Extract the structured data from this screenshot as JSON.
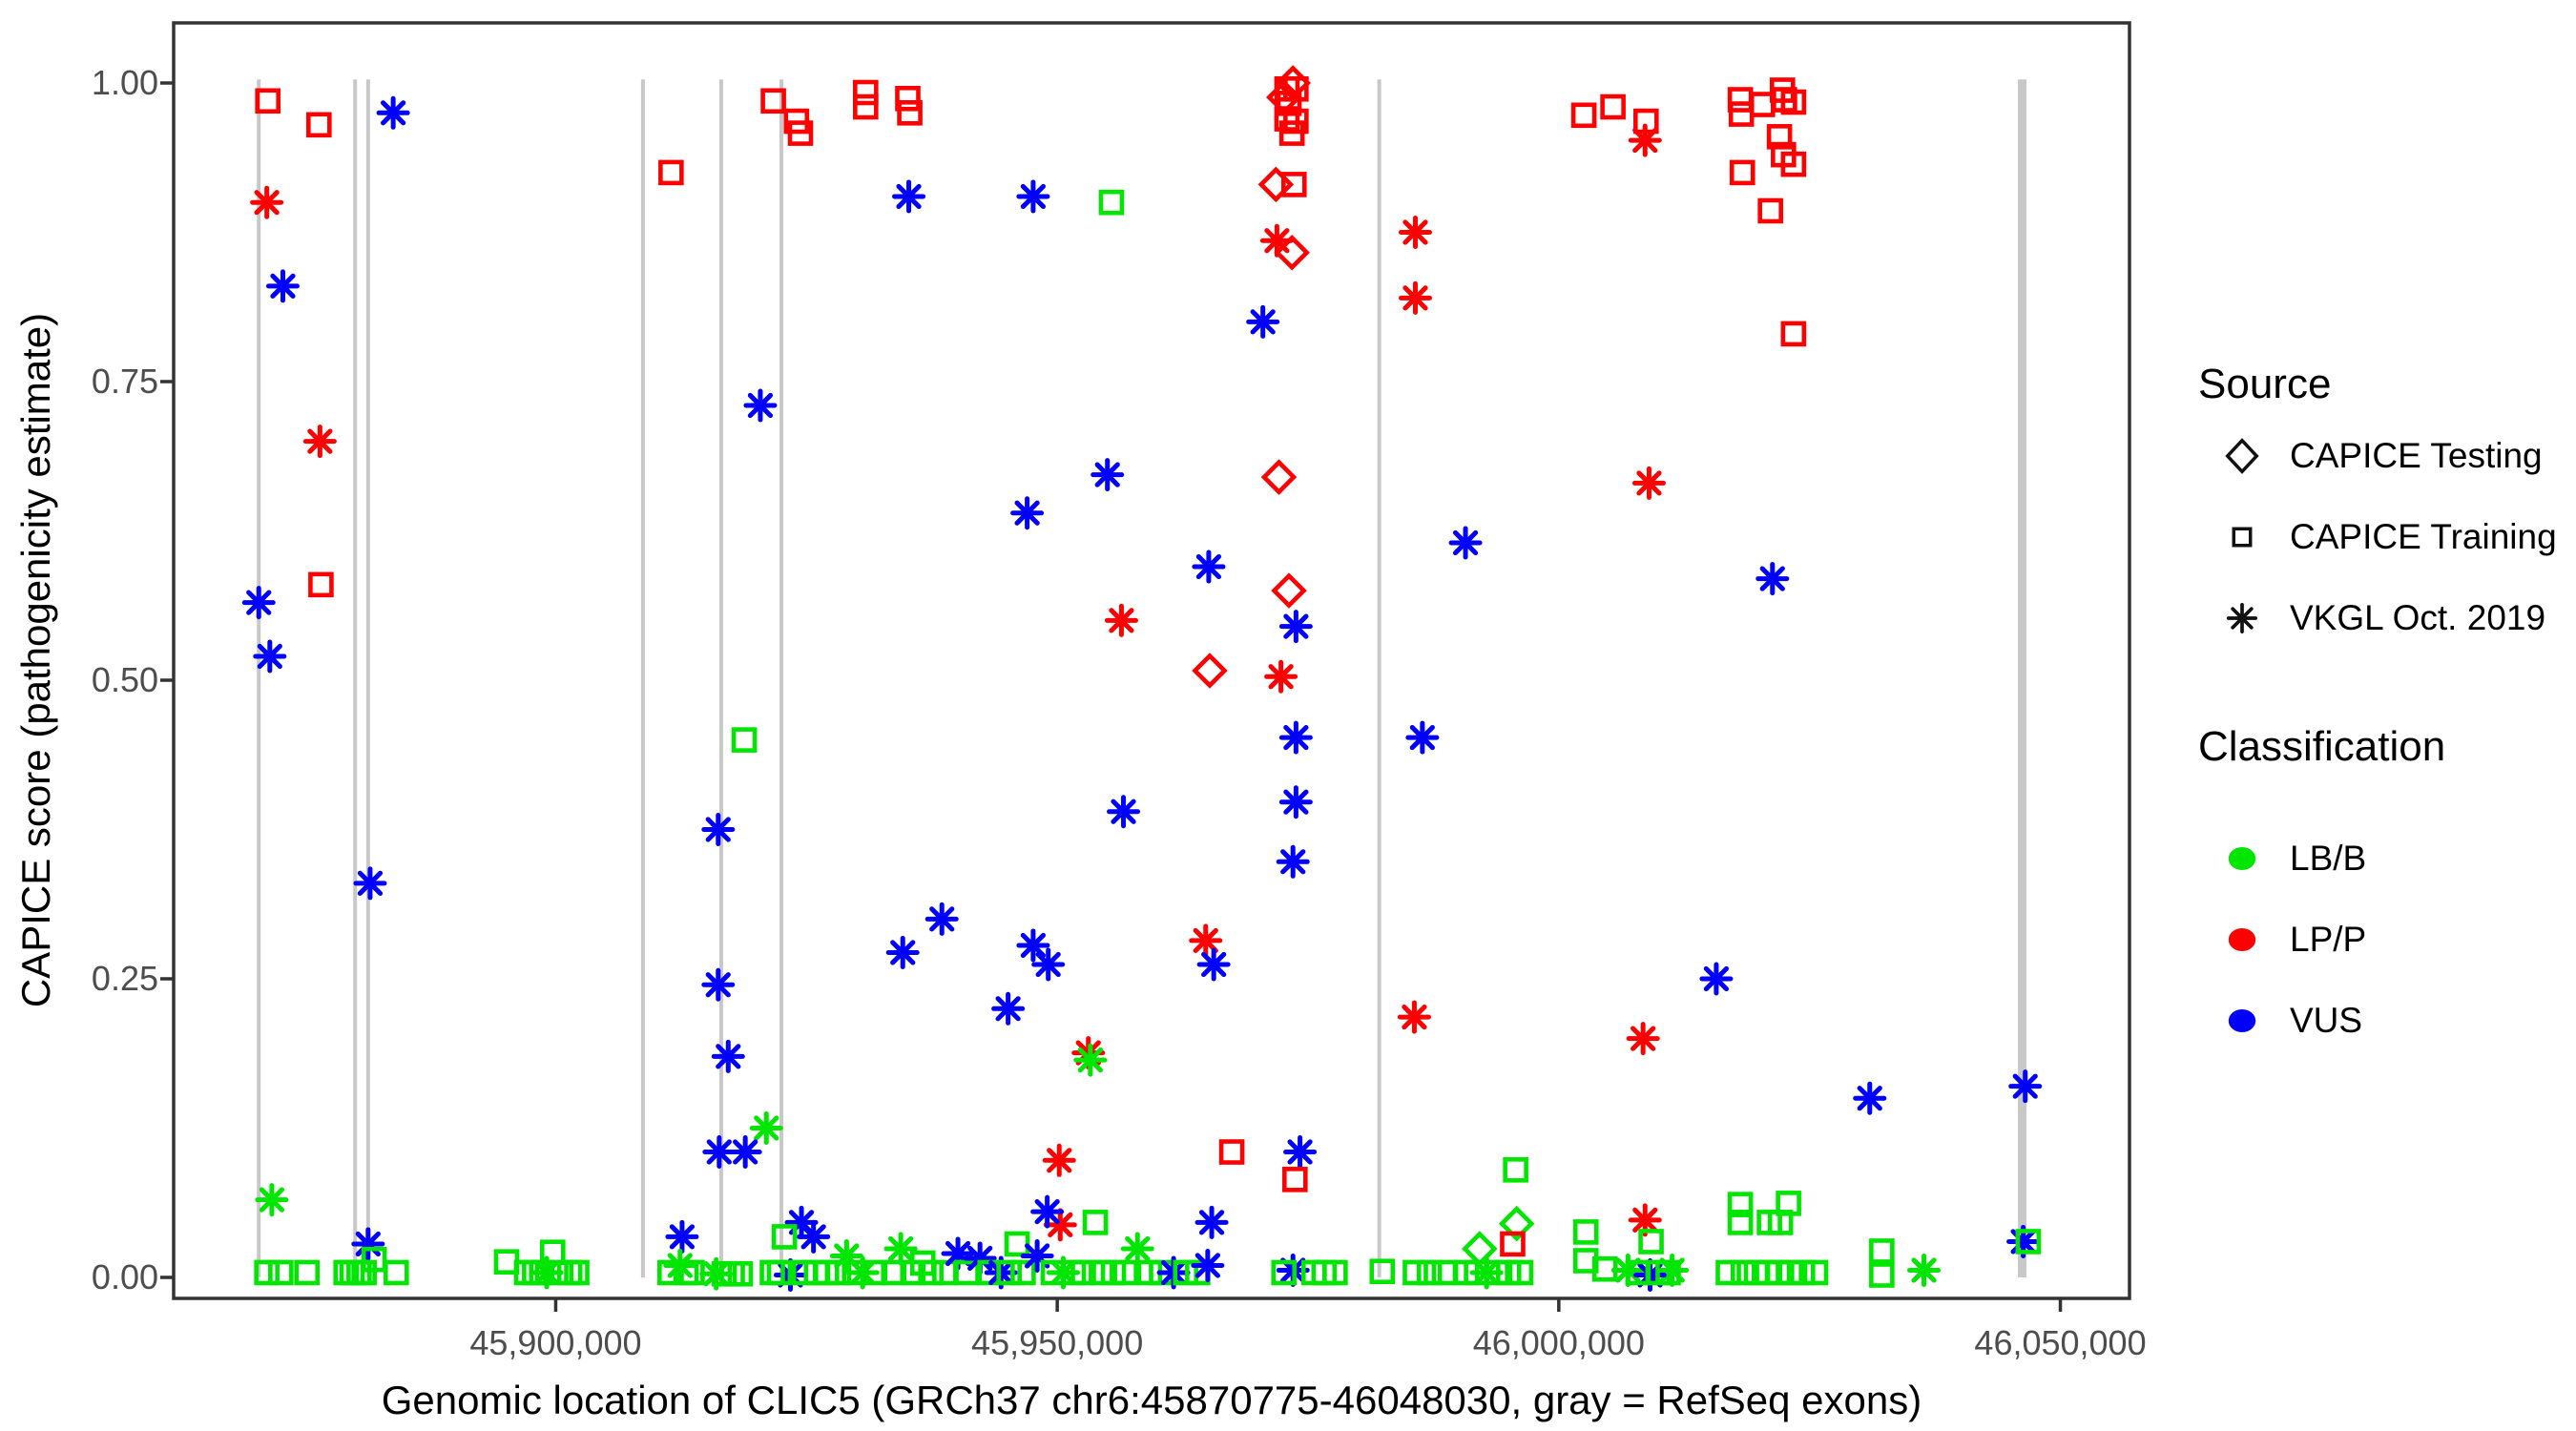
{
  "figure": {
    "kind": "scatter plot (ggplot-style)",
    "background": "#ffffff"
  },
  "legend": {
    "source": {
      "title": "Source",
      "items": [
        {
          "label": "CAPICE Testing",
          "marker": "diamond"
        },
        {
          "label": "CAPICE Training",
          "marker": "square"
        },
        {
          "label": "VKGL Oct. 2019",
          "marker": "asterisk"
        }
      ]
    },
    "classification": {
      "title": "Classification",
      "items": [
        {
          "label": "LB/B",
          "color": "#00e600"
        },
        {
          "label": "LP/P",
          "color": "#ff0000"
        },
        {
          "label": "VUS",
          "color": "#0000ff"
        }
      ]
    }
  },
  "chart_data": {
    "type": "scatter",
    "title": "",
    "xlabel": "Genomic location of CLIC5 (GRCh37 chr6:45870775-46048030, gray = RefSeq exons)",
    "ylabel": "CAPICE score (pathogenicity estimate)",
    "x_axis": {
      "domain": [
        45861912,
        46056893
      ],
      "ticks": [
        {
          "value": 45900000,
          "label": "45,900,000"
        },
        {
          "value": 45950000,
          "label": "45,950,000"
        },
        {
          "value": 46000000,
          "label": "46,000,000"
        },
        {
          "value": 46050000,
          "label": "46,050,000"
        }
      ]
    },
    "y_axis": {
      "domain": [
        0,
        1
      ],
      "ticks": [
        {
          "value": 0.0,
          "label": "0.00"
        },
        {
          "value": 0.25,
          "label": "0.25"
        },
        {
          "value": 0.5,
          "label": "0.50"
        },
        {
          "value": 0.75,
          "label": "0.75"
        },
        {
          "value": 1.0,
          "label": "1.00"
        }
      ]
    },
    "grid": false,
    "legend_position": "right",
    "exon_color": "#c8c8c8",
    "exons_note": "gray vertical lines = RefSeq exons of CLIC5",
    "exons": [
      {
        "center": 45870400,
        "thick": false
      },
      {
        "center": 45880000,
        "thick": false
      },
      {
        "center": 45881300,
        "thick": false
      },
      {
        "center": 45908700,
        "thick": false
      },
      {
        "center": 45916500,
        "thick": false
      },
      {
        "center": 45922500,
        "thick": false
      },
      {
        "center": 45982100,
        "thick": false
      },
      {
        "center": 46046200,
        "thick": true
      }
    ],
    "source_codes": {
      "T": "CAPICE Testing",
      "R": "CAPICE Training",
      "V": "VKGL Oct. 2019"
    },
    "source_marker_map": {
      "CAPICE Testing": "diamond",
      "CAPICE Training": "square",
      "VKGL Oct. 2019": "asterisk"
    },
    "class_codes": {
      "B": "LB/B",
      "P": "LP/P",
      "U": "VUS"
    },
    "classification_colors": {
      "LB/B": "#00e600",
      "LP/P": "#ff0000",
      "VUS": "#0000ff"
    },
    "point_format": [
      "genomic_position",
      "capice_score",
      "source_code",
      "classification_code"
    ],
    "points": [
      [
        45871300,
        0.985,
        "R",
        "P"
      ],
      [
        45876400,
        0.965,
        "R",
        "P"
      ],
      [
        45883800,
        0.975,
        "V",
        "U"
      ],
      [
        45871200,
        0.9,
        "V",
        "P"
      ],
      [
        45872800,
        0.83,
        "V",
        "U"
      ],
      [
        45876500,
        0.7,
        "V",
        "P"
      ],
      [
        45876600,
        0.58,
        "R",
        "P"
      ],
      [
        45870400,
        0.565,
        "V",
        "U"
      ],
      [
        45871500,
        0.52,
        "V",
        "U"
      ],
      [
        45881500,
        0.33,
        "V",
        "U"
      ],
      [
        45871700,
        0.065,
        "V",
        "B"
      ],
      [
        45881300,
        0.028,
        "V",
        "U"
      ],
      [
        45871200,
        0.004,
        "R",
        "B"
      ],
      [
        45872600,
        0.004,
        "R",
        "B"
      ],
      [
        45875200,
        0.004,
        "R",
        "B"
      ],
      [
        45879100,
        0.004,
        "R",
        "B"
      ],
      [
        45879700,
        0.004,
        "R",
        "B"
      ],
      [
        45880400,
        0.004,
        "R",
        "B"
      ],
      [
        45880900,
        0.004,
        "R",
        "B"
      ],
      [
        45881900,
        0.015,
        "R",
        "B"
      ],
      [
        45884100,
        0.004,
        "R",
        "B"
      ],
      [
        45895100,
        0.013,
        "R",
        "B"
      ],
      [
        45897100,
        0.004,
        "R",
        "B"
      ],
      [
        45897900,
        0.004,
        "R",
        "B"
      ],
      [
        45898600,
        0.004,
        "R",
        "B"
      ],
      [
        45899100,
        0.004,
        "V",
        "B"
      ],
      [
        45899700,
        0.021,
        "R",
        "B"
      ],
      [
        45900500,
        0.004,
        "R",
        "B"
      ],
      [
        45901400,
        0.004,
        "R",
        "B"
      ],
      [
        45902100,
        0.004,
        "R",
        "B"
      ],
      [
        45911500,
        0.925,
        "R",
        "P"
      ],
      [
        45921700,
        0.985,
        "R",
        "P"
      ],
      [
        45924000,
        0.968,
        "R",
        "P"
      ],
      [
        45924400,
        0.958,
        "R",
        "P"
      ],
      [
        45920400,
        0.73,
        "V",
        "U"
      ],
      [
        45918800,
        0.45,
        "R",
        "B"
      ],
      [
        45916200,
        0.375,
        "V",
        "U"
      ],
      [
        45916200,
        0.245,
        "V",
        "U"
      ],
      [
        45917200,
        0.185,
        "V",
        "U"
      ],
      [
        45921000,
        0.125,
        "V",
        "B"
      ],
      [
        45916300,
        0.105,
        "V",
        "U"
      ],
      [
        45918900,
        0.105,
        "V",
        "U"
      ],
      [
        45912600,
        0.034,
        "V",
        "U"
      ],
      [
        45924500,
        0.046,
        "V",
        "U"
      ],
      [
        45925700,
        0.034,
        "V",
        "U"
      ],
      [
        45922800,
        0.034,
        "R",
        "B"
      ],
      [
        45923400,
        0.002,
        "V",
        "U"
      ],
      [
        45911400,
        0.004,
        "R",
        "B"
      ],
      [
        45912400,
        0.01,
        "V",
        "B"
      ],
      [
        45913000,
        0.004,
        "R",
        "B"
      ],
      [
        45913600,
        0.004,
        "R",
        "B"
      ],
      [
        45916000,
        0.003,
        "V",
        "B"
      ],
      [
        45916800,
        0.003,
        "R",
        "B"
      ],
      [
        45917600,
        0.003,
        "R",
        "B"
      ],
      [
        45918400,
        0.003,
        "R",
        "B"
      ],
      [
        45921600,
        0.004,
        "R",
        "B"
      ],
      [
        45922300,
        0.004,
        "R",
        "B"
      ],
      [
        45924800,
        0.004,
        "R",
        "B"
      ],
      [
        45926000,
        0.004,
        "R",
        "B"
      ],
      [
        45927000,
        0.004,
        "R",
        "B"
      ],
      [
        45930900,
        0.992,
        "R",
        "P"
      ],
      [
        45930900,
        0.98,
        "R",
        "P"
      ],
      [
        45935100,
        0.987,
        "R",
        "P"
      ],
      [
        45935300,
        0.975,
        "R",
        "P"
      ],
      [
        45935200,
        0.905,
        "V",
        "U"
      ],
      [
        45947600,
        0.905,
        "V",
        "U"
      ],
      [
        45955400,
        0.9,
        "R",
        "B"
      ],
      [
        45947000,
        0.64,
        "V",
        "U"
      ],
      [
        45955000,
        0.672,
        "V",
        "U"
      ],
      [
        45965100,
        0.595,
        "V",
        "U"
      ],
      [
        45956400,
        0.55,
        "V",
        "P"
      ],
      [
        45956600,
        0.39,
        "V",
        "U"
      ],
      [
        45938500,
        0.3,
        "V",
        "U"
      ],
      [
        45934600,
        0.272,
        "V",
        "U"
      ],
      [
        45947600,
        0.278,
        "V",
        "U"
      ],
      [
        45949100,
        0.262,
        "V",
        "U"
      ],
      [
        45945100,
        0.225,
        "V",
        "U"
      ],
      [
        45953100,
        0.188,
        "V",
        "P"
      ],
      [
        45953300,
        0.182,
        "V",
        "B"
      ],
      [
        45950200,
        0.098,
        "V",
        "P"
      ],
      [
        45950300,
        0.044,
        "V",
        "P"
      ],
      [
        45949000,
        0.055,
        "V",
        "U"
      ],
      [
        45953800,
        0.046,
        "R",
        "B"
      ],
      [
        45946000,
        0.028,
        "R",
        "B"
      ],
      [
        45965400,
        0.046,
        "V",
        "U"
      ],
      [
        45928200,
        0.004,
        "R",
        "B"
      ],
      [
        45929000,
        0.018,
        "V",
        "B"
      ],
      [
        45929800,
        0.004,
        "R",
        "B"
      ],
      [
        45930600,
        0.004,
        "V",
        "B"
      ],
      [
        45931800,
        0.004,
        "R",
        "B"
      ],
      [
        45933700,
        0.004,
        "R",
        "B"
      ],
      [
        45934400,
        0.024,
        "V",
        "B"
      ],
      [
        45935600,
        0.004,
        "R",
        "B"
      ],
      [
        45936600,
        0.012,
        "R",
        "B"
      ],
      [
        45937400,
        0.004,
        "R",
        "B"
      ],
      [
        45938800,
        0.004,
        "R",
        "B"
      ],
      [
        45940100,
        0.02,
        "V",
        "U"
      ],
      [
        45941000,
        0.004,
        "R",
        "B"
      ],
      [
        45942300,
        0.016,
        "V",
        "U"
      ],
      [
        45943300,
        0.004,
        "R",
        "B"
      ],
      [
        45944400,
        0.004,
        "V",
        "U"
      ],
      [
        45945200,
        0.004,
        "R",
        "B"
      ],
      [
        45946600,
        0.004,
        "R",
        "B"
      ],
      [
        45948000,
        0.018,
        "V",
        "U"
      ],
      [
        45949600,
        0.004,
        "R",
        "B"
      ],
      [
        45950600,
        0.004,
        "V",
        "B"
      ],
      [
        45951600,
        0.004,
        "R",
        "B"
      ],
      [
        45952600,
        0.004,
        "R",
        "B"
      ],
      [
        45954400,
        0.004,
        "R",
        "B"
      ],
      [
        45955600,
        0.004,
        "R",
        "B"
      ],
      [
        45956800,
        0.004,
        "R",
        "B"
      ],
      [
        45958000,
        0.024,
        "V",
        "B"
      ],
      [
        45959200,
        0.004,
        "R",
        "B"
      ],
      [
        45960400,
        0.004,
        "R",
        "B"
      ],
      [
        45961600,
        0.004,
        "V",
        "U"
      ],
      [
        45962800,
        0.004,
        "R",
        "B"
      ],
      [
        45964000,
        0.004,
        "R",
        "B"
      ],
      [
        45965000,
        0.01,
        "V",
        "U"
      ],
      [
        45972900,
        0.995,
        "R",
        "P"
      ],
      [
        45973800,
        0.995,
        "R",
        "P"
      ],
      [
        45973500,
        1.0,
        "T",
        "P"
      ],
      [
        45972600,
        0.988,
        "T",
        "P"
      ],
      [
        45973100,
        0.983,
        "R",
        "P"
      ],
      [
        45972900,
        0.97,
        "R",
        "P"
      ],
      [
        45973800,
        0.968,
        "R",
        "P"
      ],
      [
        45973400,
        0.958,
        "R",
        "P"
      ],
      [
        45971800,
        0.915,
        "T",
        "P"
      ],
      [
        45973600,
        0.915,
        "R",
        "P"
      ],
      [
        45971900,
        0.868,
        "V",
        "P"
      ],
      [
        45973400,
        0.858,
        "T",
        "P"
      ],
      [
        45970500,
        0.8,
        "V",
        "U"
      ],
      [
        45972100,
        0.67,
        "T",
        "P"
      ],
      [
        45973100,
        0.575,
        "T",
        "P"
      ],
      [
        45973800,
        0.545,
        "V",
        "U"
      ],
      [
        45965200,
        0.508,
        "T",
        "P"
      ],
      [
        45972300,
        0.503,
        "V",
        "P"
      ],
      [
        45973800,
        0.452,
        "V",
        "U"
      ],
      [
        45986400,
        0.452,
        "V",
        "U"
      ],
      [
        45973800,
        0.398,
        "V",
        "U"
      ],
      [
        45973500,
        0.348,
        "V",
        "U"
      ],
      [
        45985700,
        0.875,
        "V",
        "P"
      ],
      [
        45985700,
        0.82,
        "V",
        "P"
      ],
      [
        45964800,
        0.282,
        "V",
        "P"
      ],
      [
        45965600,
        0.262,
        "V",
        "U"
      ],
      [
        45985600,
        0.218,
        "V",
        "P"
      ],
      [
        45990700,
        0.615,
        "V",
        "U"
      ],
      [
        45974200,
        0.105,
        "V",
        "U"
      ],
      [
        45967400,
        0.105,
        "R",
        "P"
      ],
      [
        45973700,
        0.082,
        "R",
        "P"
      ],
      [
        45973500,
        0.006,
        "V",
        "U"
      ],
      [
        45972600,
        0.004,
        "R",
        "B"
      ],
      [
        45975600,
        0.004,
        "R",
        "B"
      ],
      [
        45976600,
        0.004,
        "R",
        "B"
      ],
      [
        45977700,
        0.004,
        "R",
        "B"
      ],
      [
        45982400,
        0.005,
        "R",
        "B"
      ],
      [
        45985700,
        0.004,
        "R",
        "B"
      ],
      [
        45987100,
        0.004,
        "R",
        "B"
      ],
      [
        45988600,
        0.004,
        "R",
        "B"
      ],
      [
        45992100,
        0.024,
        "T",
        "B"
      ],
      [
        45990800,
        0.004,
        "R",
        "B"
      ],
      [
        45991800,
        0.004,
        "R",
        "B"
      ],
      [
        45992800,
        0.004,
        "V",
        "B"
      ],
      [
        45993800,
        0.004,
        "R",
        "B"
      ],
      [
        45995700,
        0.09,
        "R",
        "B"
      ],
      [
        45995800,
        0.045,
        "T",
        "B"
      ],
      [
        45995400,
        0.028,
        "R",
        "P"
      ],
      [
        45995000,
        0.004,
        "R",
        "B"
      ],
      [
        45996200,
        0.004,
        "R",
        "B"
      ],
      [
        46002500,
        0.973,
        "R",
        "P"
      ],
      [
        46005400,
        0.98,
        "R",
        "P"
      ],
      [
        46008700,
        0.968,
        "R",
        "P"
      ],
      [
        46008600,
        0.952,
        "V",
        "P"
      ],
      [
        46018100,
        0.986,
        "R",
        "P"
      ],
      [
        46018200,
        0.974,
        "R",
        "P"
      ],
      [
        46020300,
        0.982,
        "R",
        "P"
      ],
      [
        46022300,
        0.994,
        "R",
        "P"
      ],
      [
        46022500,
        0.986,
        "R",
        "P"
      ],
      [
        46023400,
        0.984,
        "R",
        "P"
      ],
      [
        46022000,
        0.955,
        "R",
        "P"
      ],
      [
        46022400,
        0.94,
        "R",
        "P"
      ],
      [
        46023400,
        0.932,
        "R",
        "P"
      ],
      [
        46018300,
        0.925,
        "R",
        "P"
      ],
      [
        46021100,
        0.893,
        "R",
        "P"
      ],
      [
        46023400,
        0.79,
        "R",
        "P"
      ],
      [
        46009000,
        0.665,
        "V",
        "P"
      ],
      [
        46021300,
        0.585,
        "V",
        "U"
      ],
      [
        46015700,
        0.25,
        "V",
        "U"
      ],
      [
        46008400,
        0.2,
        "V",
        "P"
      ],
      [
        46031000,
        0.15,
        "V",
        "U"
      ],
      [
        46046500,
        0.16,
        "V",
        "U"
      ],
      [
        46008600,
        0.048,
        "V",
        "P"
      ],
      [
        46002700,
        0.038,
        "R",
        "B"
      ],
      [
        46002700,
        0.014,
        "R",
        "B"
      ],
      [
        46004600,
        0.007,
        "R",
        "B"
      ],
      [
        46009200,
        0.03,
        "R",
        "B"
      ],
      [
        46006900,
        0.006,
        "V",
        "B"
      ],
      [
        46011300,
        0.006,
        "V",
        "B"
      ],
      [
        46009100,
        0.002,
        "V",
        "U"
      ],
      [
        46007900,
        0.004,
        "R",
        "B"
      ],
      [
        46009900,
        0.004,
        "R",
        "B"
      ],
      [
        46010900,
        0.004,
        "R",
        "B"
      ],
      [
        46018100,
        0.061,
        "R",
        "B"
      ],
      [
        46018100,
        0.046,
        "R",
        "B"
      ],
      [
        46021000,
        0.046,
        "R",
        "B"
      ],
      [
        46022100,
        0.046,
        "R",
        "B"
      ],
      [
        46022900,
        0.062,
        "R",
        "B"
      ],
      [
        46016900,
        0.004,
        "R",
        "B"
      ],
      [
        46018400,
        0.004,
        "R",
        "B"
      ],
      [
        46019700,
        0.004,
        "R",
        "B"
      ],
      [
        46020800,
        0.004,
        "R",
        "B"
      ],
      [
        46021900,
        0.004,
        "R",
        "B"
      ],
      [
        46023100,
        0.004,
        "R",
        "B"
      ],
      [
        46024300,
        0.004,
        "R",
        "B"
      ],
      [
        46025600,
        0.004,
        "R",
        "B"
      ],
      [
        46032200,
        0.022,
        "R",
        "B"
      ],
      [
        46032200,
        0.002,
        "R",
        "B"
      ],
      [
        46036400,
        0.006,
        "V",
        "B"
      ],
      [
        46046300,
        0.03,
        "V",
        "U"
      ],
      [
        46046800,
        0.03,
        "R",
        "B"
      ]
    ]
  }
}
